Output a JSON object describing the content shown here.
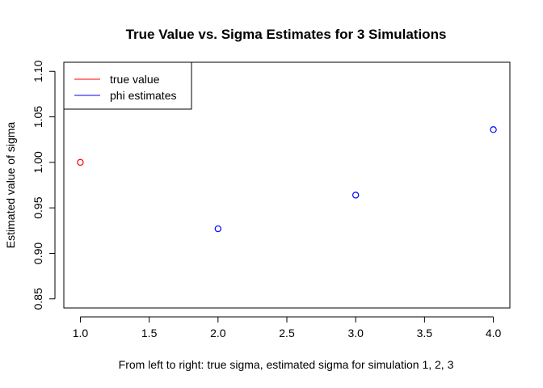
{
  "chart_data": {
    "type": "scatter",
    "title": "True Value vs. Sigma Estimates for 3 Simulations",
    "xlabel": "From left to right: true sigma, estimated sigma for simulation 1, 2, 3",
    "ylabel": "Estimated value of sigma",
    "xlim": [
      0.88,
      4.12
    ],
    "ylim": [
      0.84,
      1.11
    ],
    "x_ticks": [
      "1.0",
      "1.5",
      "2.0",
      "2.5",
      "3.0",
      "3.5",
      "4.0"
    ],
    "y_ticks": [
      "0.85",
      "0.90",
      "0.95",
      "1.00",
      "1.05",
      "1.10"
    ],
    "grid": false,
    "legend_position": "top-left",
    "series": [
      {
        "name": "true value",
        "color": "#ff0000",
        "points": [
          {
            "x": 1,
            "y": 1.0
          }
        ]
      },
      {
        "name": "phi estimates",
        "color": "#0000ff",
        "points": [
          {
            "x": 2,
            "y": 0.927
          },
          {
            "x": 3,
            "y": 0.964
          },
          {
            "x": 4,
            "y": 1.036
          }
        ]
      }
    ]
  }
}
